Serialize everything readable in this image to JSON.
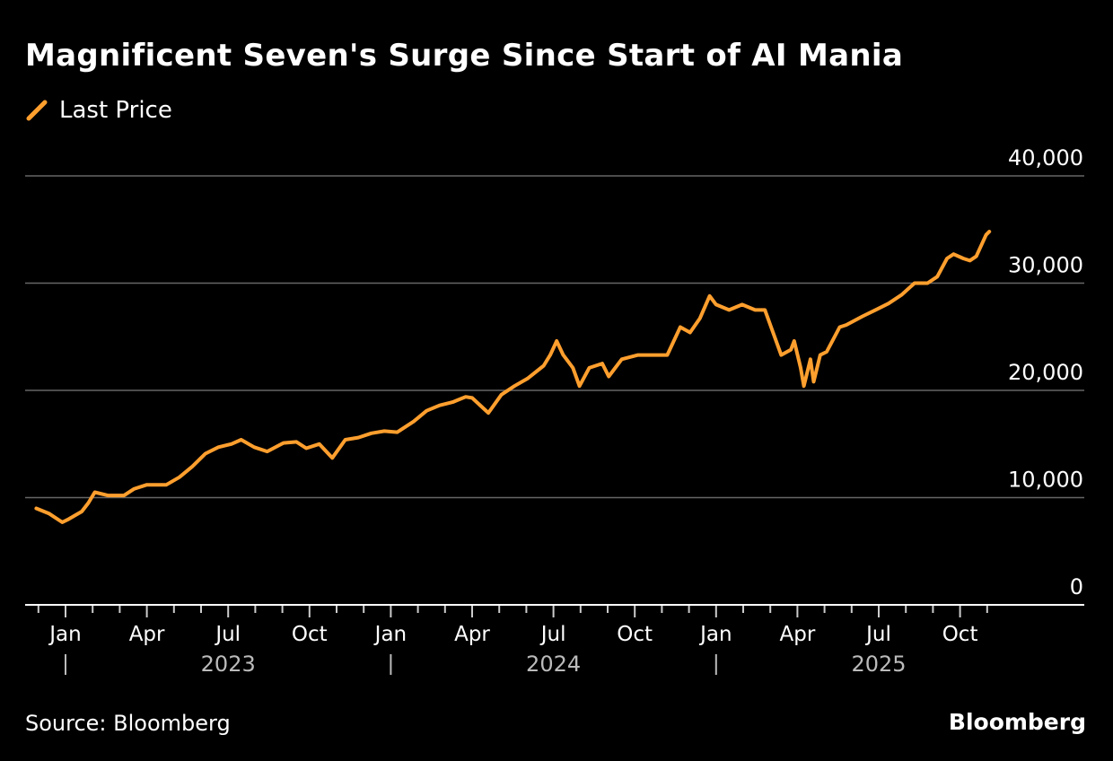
{
  "chart_data": {
    "type": "line",
    "title": "Magnificent Seven's Surge Since Start of AI Mania",
    "legend": [
      "Last Price"
    ],
    "legend_placement": "top-left",
    "color": "#ff9f2e",
    "ylim": [
      0,
      40000
    ],
    "yticks": [
      0,
      10000,
      20000,
      30000,
      40000
    ],
    "ytick_labels": [
      "0",
      "10,000",
      "20,000",
      "30,000",
      "40,000"
    ],
    "xticks": [
      {
        "t": 2023.0,
        "label": "Jan"
      },
      {
        "t": 2023.25,
        "label": "Apr"
      },
      {
        "t": 2023.5,
        "label": "Jul"
      },
      {
        "t": 2023.75,
        "label": "Oct"
      },
      {
        "t": 2024.0,
        "label": "Jan"
      },
      {
        "t": 2024.25,
        "label": "Apr"
      },
      {
        "t": 2024.5,
        "label": "Jul"
      },
      {
        "t": 2024.75,
        "label": "Oct"
      },
      {
        "t": 2025.0,
        "label": "Jan"
      },
      {
        "t": 2025.25,
        "label": "Apr"
      },
      {
        "t": 2025.5,
        "label": "Jul"
      },
      {
        "t": 2025.75,
        "label": "Oct"
      }
    ],
    "years": [
      {
        "t": 2023.5,
        "label": "2023"
      },
      {
        "t": 2024.5,
        "label": "2024"
      },
      {
        "t": 2025.5,
        "label": "2025"
      }
    ],
    "grid": true,
    "series": [
      {
        "name": "Last Price",
        "t": [
          2022.91,
          2022.95,
          2022.99,
          2023.01,
          2023.05,
          2023.07,
          2023.09,
          2023.13,
          2023.18,
          2023.21,
          2023.25,
          2023.31,
          2023.35,
          2023.39,
          2023.43,
          2023.47,
          2023.51,
          2023.54,
          2023.58,
          2023.62,
          2023.67,
          2023.71,
          2023.74,
          2023.78,
          2023.82,
          2023.86,
          2023.9,
          2023.94,
          2023.98,
          2024.02,
          2024.07,
          2024.11,
          2024.15,
          2024.19,
          2024.23,
          2024.25,
          2024.3,
          2024.34,
          2024.38,
          2024.42,
          2024.47,
          2024.49,
          2024.51,
          2024.53,
          2024.56,
          2024.58,
          2024.61,
          2024.65,
          2024.67,
          2024.71,
          2024.76,
          2024.79,
          2024.85,
          2024.89,
          2024.92,
          2024.95,
          2024.98,
          2025.0,
          2025.04,
          2025.08,
          2025.12,
          2025.15,
          2025.18,
          2025.2,
          2025.23,
          2025.24,
          2025.26,
          2025.27,
          2025.29,
          2025.3,
          2025.32,
          2025.34,
          2025.38,
          2025.4,
          2025.45,
          2025.49,
          2025.53,
          2025.57,
          2025.61,
          2025.65,
          2025.68,
          2025.71,
          2025.73,
          2025.76,
          2025.78,
          2025.8,
          2025.83,
          2025.84
        ],
        "values": [
          9000,
          8500,
          7700,
          8000,
          8700,
          9500,
          10500,
          10200,
          10200,
          10800,
          11200,
          11200,
          11900,
          12900,
          14100,
          14700,
          15000,
          15400,
          14700,
          14300,
          15100,
          15200,
          14600,
          15000,
          13700,
          15400,
          15600,
          16000,
          16200,
          16100,
          17100,
          18100,
          18600,
          18900,
          19400,
          19300,
          17900,
          19600,
          20400,
          21100,
          22300,
          23300,
          24600,
          23300,
          22100,
          20400,
          22100,
          22500,
          21300,
          22900,
          23300,
          23300,
          23300,
          25900,
          25400,
          26700,
          28800,
          28000,
          27500,
          28000,
          27500,
          27500,
          25000,
          23300,
          23800,
          24600,
          22100,
          20400,
          22900,
          20800,
          23300,
          23600,
          25900,
          26100,
          26900,
          27500,
          28100,
          28900,
          30000,
          30000,
          30600,
          32300,
          32700,
          32300,
          32100,
          32500,
          34500,
          34800
        ]
      }
    ]
  },
  "source": "Source: Bloomberg",
  "logo": "Bloomberg"
}
